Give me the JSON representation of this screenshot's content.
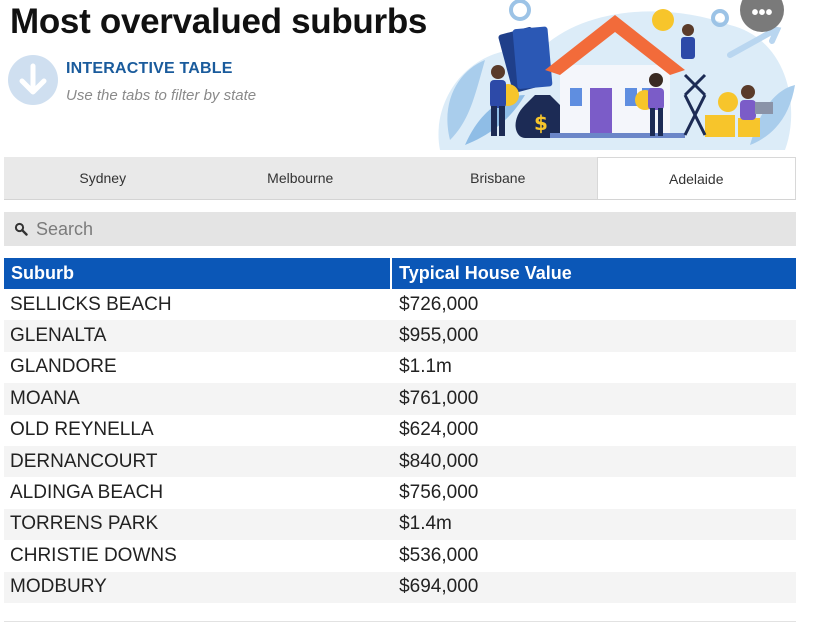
{
  "page": {
    "title": "Most overvalued suburbs"
  },
  "info": {
    "heading": "INTERACTIVE TABLE",
    "subtext": "Use the tabs to filter by state"
  },
  "more_button": {
    "label": "•••"
  },
  "tabs": [
    {
      "label": "Sydney",
      "active": false
    },
    {
      "label": "Melbourne",
      "active": false
    },
    {
      "label": "Brisbane",
      "active": false
    },
    {
      "label": "Adelaide",
      "active": true
    }
  ],
  "search": {
    "placeholder": "Search",
    "value": ""
  },
  "table": {
    "columns": [
      "Suburb",
      "Typical House Value"
    ],
    "rows": [
      [
        "SELLICKS BEACH",
        "$726,000"
      ],
      [
        "GLENALTA",
        "$955,000"
      ],
      [
        "GLANDORE",
        "$1.1m"
      ],
      [
        "MOANA",
        "$761,000"
      ],
      [
        "OLD REYNELLA",
        "$624,000"
      ],
      [
        "DERNANCOURT",
        "$840,000"
      ],
      [
        "ALDINGA BEACH",
        "$756,000"
      ],
      [
        "TORRENS PARK",
        "$1.4m"
      ],
      [
        "CHRISTIE DOWNS",
        "$536,000"
      ],
      [
        "MODBURY",
        "$694,000"
      ]
    ]
  },
  "colors": {
    "header_blue": "#0b57b7",
    "heading_blue": "#1a5b9c",
    "tab_bg": "#e9e9e9",
    "row_alt": "#f4f4f4",
    "roof_orange": "#f26b3a",
    "coin_yellow": "#f7c52b"
  },
  "icons": {
    "info": "arrow-down-circle-icon",
    "search": "magnifier-icon",
    "more": "ellipsis-icon"
  }
}
